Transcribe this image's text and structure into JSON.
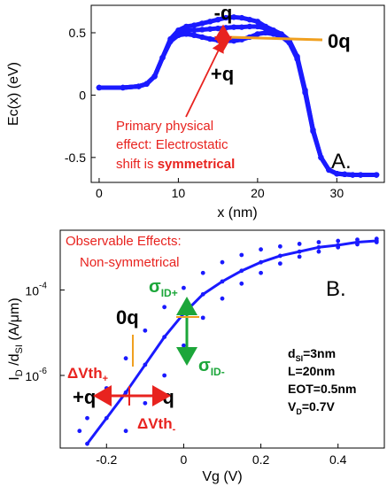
{
  "chart_data": [
    {
      "panel_id": "A.",
      "type": "line",
      "xlabel": "x (nm)",
      "ylabel": "Ec(x) (eV)",
      "xlim": [
        -1,
        36
      ],
      "ylim": [
        -0.7,
        0.72
      ],
      "xticks": [
        "0",
        "10",
        "20",
        "30"
      ],
      "xtick_values": [
        0,
        10,
        20,
        30
      ],
      "yticks": [
        "0.5",
        "0",
        "-0.5"
      ],
      "ytick_values": [
        0.5,
        0,
        -0.5
      ],
      "series": [
        {
          "name": "-q",
          "x": [
            0,
            3,
            5,
            6,
            7,
            8,
            9,
            10,
            11,
            12,
            13,
            14,
            15,
            16,
            17,
            18,
            19,
            20,
            21,
            22,
            23,
            24,
            25,
            26,
            27,
            28,
            29,
            30,
            31,
            32,
            33,
            35
          ],
          "y": [
            0.06,
            0.06,
            0.07,
            0.09,
            0.15,
            0.3,
            0.45,
            0.52,
            0.55,
            0.56,
            0.575,
            0.59,
            0.605,
            0.62,
            0.625,
            0.62,
            0.605,
            0.59,
            0.55,
            0.52,
            0.49,
            0.44,
            0.31,
            0.04,
            -0.28,
            -0.5,
            -0.6,
            -0.63,
            -0.635,
            -0.64,
            -0.64,
            -0.64
          ]
        },
        {
          "name": "0q",
          "x": [
            0,
            3,
            5,
            6,
            7,
            8,
            9,
            10,
            11,
            12,
            13,
            14,
            15,
            16,
            17,
            18,
            19,
            20,
            21,
            22,
            23,
            24,
            25,
            26,
            27,
            28,
            29,
            30,
            31,
            32,
            33,
            35
          ],
          "y": [
            0.06,
            0.06,
            0.07,
            0.09,
            0.15,
            0.3,
            0.44,
            0.5,
            0.52,
            0.52,
            0.525,
            0.53,
            0.535,
            0.54,
            0.545,
            0.545,
            0.55,
            0.55,
            0.535,
            0.51,
            0.48,
            0.43,
            0.3,
            0.03,
            -0.28,
            -0.5,
            -0.6,
            -0.63,
            -0.635,
            -0.64,
            -0.64,
            -0.64
          ]
        },
        {
          "name": "+q",
          "x": [
            0,
            3,
            5,
            6,
            7,
            8,
            9,
            10,
            11,
            12,
            13,
            14,
            15,
            16,
            17,
            18,
            19,
            20,
            21,
            22,
            23,
            24,
            25,
            26,
            27,
            28,
            29,
            30,
            31,
            32,
            33,
            35
          ],
          "y": [
            0.06,
            0.06,
            0.07,
            0.09,
            0.15,
            0.3,
            0.43,
            0.48,
            0.49,
            0.48,
            0.465,
            0.45,
            0.44,
            0.435,
            0.435,
            0.445,
            0.465,
            0.49,
            0.5,
            0.49,
            0.47,
            0.42,
            0.29,
            0.02,
            -0.29,
            -0.5,
            -0.6,
            -0.63,
            -0.635,
            -0.64,
            -0.64,
            -0.64
          ]
        }
      ]
    },
    {
      "panel_id": "B.",
      "type": "scatter",
      "xlabel": "Vg (V)",
      "ylabel": "I_D /d_SI (A/μm)",
      "ylog": true,
      "xlim": [
        -0.32,
        0.52
      ],
      "ylim_log10": [
        -7.7,
        -2.6
      ],
      "xticks": [
        "-0.2",
        "0",
        "0.2",
        "0.4"
      ],
      "xtick_values": [
        -0.2,
        0,
        0.2,
        0.4
      ],
      "yticks": [
        "10",
        "10"
      ],
      "ytick_exponents": [
        "-4",
        "-6"
      ],
      "ytick_values_log10": [
        -4,
        -6
      ],
      "series": [
        {
          "name": "0q",
          "x": [
            -0.25,
            -0.2,
            -0.15,
            -0.1,
            -0.05,
            0.0,
            0.05,
            0.1,
            0.15,
            0.2,
            0.25,
            0.3,
            0.35,
            0.4,
            0.45,
            0.5
          ],
          "y_log10": [
            -7.6,
            -7.0,
            -6.4,
            -5.75,
            -5.1,
            -4.55,
            -4.1,
            -3.8,
            -3.55,
            -3.35,
            -3.2,
            -3.1,
            -3.0,
            -2.95,
            -2.88,
            -2.85
          ]
        },
        {
          "name": "-q",
          "x": [
            -0.15,
            -0.1,
            -0.05,
            0.0,
            0.05,
            0.1,
            0.15,
            0.2,
            0.25,
            0.3,
            0.35,
            0.4,
            0.45,
            0.5
          ],
          "y_log10": [
            -7.3,
            -6.65,
            -6.0,
            -5.3,
            -4.65,
            -4.2,
            -3.85,
            -3.6,
            -3.38,
            -3.22,
            -3.1,
            -3.0,
            -2.93,
            -2.88
          ]
        },
        {
          "name": "+q",
          "x": [
            -0.27,
            -0.25,
            -0.2,
            -0.15,
            -0.1,
            -0.05,
            0.0,
            0.05,
            0.1,
            0.15,
            0.2,
            0.25,
            0.3,
            0.35,
            0.4,
            0.45,
            0.5
          ],
          "y_log10": [
            -7.3,
            -7.0,
            -6.3,
            -5.6,
            -4.95,
            -4.4,
            -3.95,
            -3.6,
            -3.35,
            -3.18,
            -3.05,
            -2.98,
            -2.92,
            -2.88,
            -2.85,
            -2.82,
            -2.8
          ]
        }
      ]
    }
  ],
  "annotations": {
    "a_minus_q": "-q",
    "a_zero_q": "0q",
    "a_plus_q": "+q",
    "primary_line1": "Primary physical",
    "primary_line2": "effect: Electrostatic",
    "primary_line3_plain": "shift is ",
    "primary_line3_bold": "symmetrical",
    "panel_a": "A.",
    "observable_line1": "Observable Effects:",
    "observable_line2": "Non-symmetrical",
    "panel_b": "B.",
    "sigma_plus_main": "σ",
    "sigma_plus_sub": "ID+",
    "sigma_minus_main": "σ",
    "sigma_minus_sub": "ID-",
    "b_zero_q": "0q",
    "dvth_plus_main": "ΔVth",
    "dvth_plus_sub": "+",
    "dvth_minus_main": "ΔVth",
    "dvth_minus_sub": "-",
    "b_plus_q": "+q",
    "b_minus_q": "-q",
    "param_dsi_main": "d",
    "param_dsi_sub": "SI",
    "param_dsi_val": "=3nm",
    "param_l": "L=20nm",
    "param_eot": "EOT=0.5nm",
    "param_vd_main": "V",
    "param_vd_sub": "D",
    "param_vd_val": "=0.7V"
  },
  "colors": {
    "curve": "#1a1aff",
    "annotation_red": "#e8231f",
    "annotation_green": "#1ca63a",
    "annotation_orange": "#f0a020"
  }
}
